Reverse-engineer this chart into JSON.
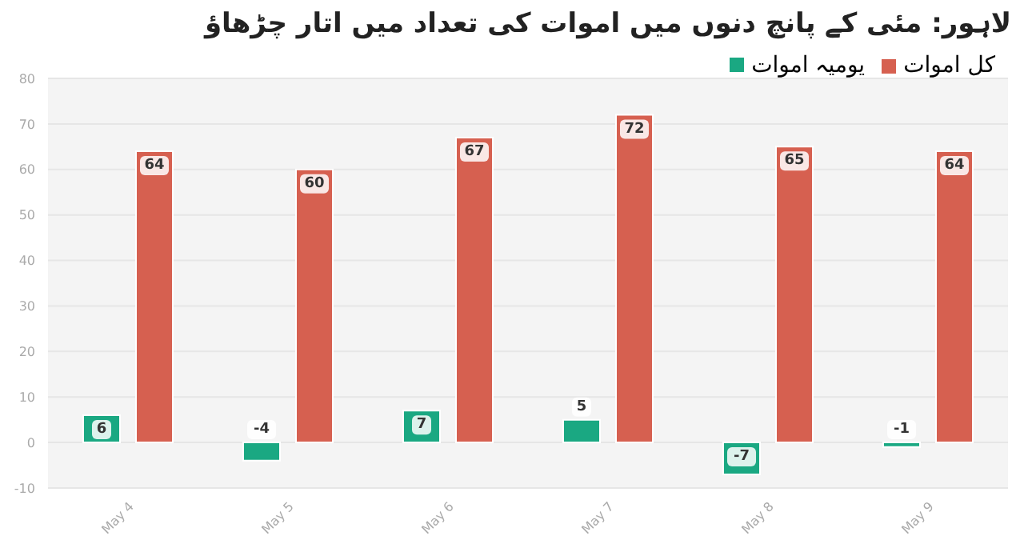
{
  "chart_data": {
    "type": "bar",
    "title": "لاہور: مئی کے پانچ دنوں میں اموات کی تعداد میں اتار چڑھاؤ",
    "categories": [
      "May 4",
      "May 5",
      "May 6",
      "May 7",
      "May 8",
      "May 9"
    ],
    "series": [
      {
        "name": "یومیہ اموات",
        "color": "#1aa882",
        "values": [
          6,
          -4,
          7,
          5,
          -7,
          -1
        ]
      },
      {
        "name": "کل اموات",
        "color": "#d66050",
        "values": [
          64,
          60,
          67,
          72,
          65,
          64
        ]
      }
    ],
    "ylim": [
      -10,
      80
    ],
    "yticks": [
      -10,
      0,
      10,
      20,
      30,
      40,
      50,
      60,
      70,
      80
    ],
    "grid": "y",
    "legend": "top right",
    "data_labels": true
  }
}
